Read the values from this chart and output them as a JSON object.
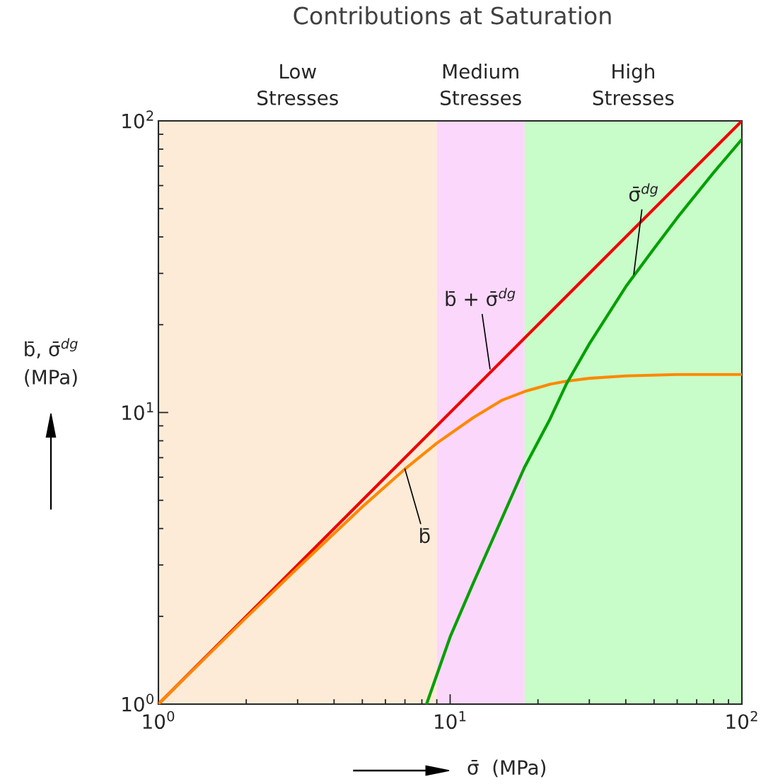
{
  "chart_data": {
    "type": "line",
    "title": "Contributions at Saturation",
    "xlabel": "σ̄  (MPa)",
    "ylabel": "b̄, σ̄$^{dg}$\n(MPa)",
    "log": "xy",
    "xlim": [
      1,
      100
    ],
    "ylim": [
      1,
      100
    ],
    "xticks": [
      {
        "value": 1,
        "label": "10$^{0}$"
      },
      {
        "value": 10,
        "label": "10$^{1}$"
      },
      {
        "value": 100,
        "label": "10$^{2}$"
      }
    ],
    "yticks": [
      {
        "value": 1,
        "label": "10$^{0}$"
      },
      {
        "value": 10,
        "label": "10$^{1}$"
      },
      {
        "value": 100,
        "label": "10$^{2}$"
      }
    ],
    "grid": false,
    "legend": false,
    "series": [
      {
        "color": "#ee0000",
        "x": [
          1,
          100
        ],
        "values": [
          1,
          100
        ]
      },
      {
        "color": "#ff8800",
        "x": [
          1,
          2,
          3,
          5,
          7,
          9,
          12,
          15,
          18,
          22,
          25,
          30,
          40,
          60,
          100
        ],
        "values": [
          1,
          1.98,
          2.93,
          4.75,
          6.4,
          7.85,
          9.6,
          11.0,
          11.8,
          12.5,
          12.8,
          13.1,
          13.35,
          13.5,
          13.5
        ]
      },
      {
        "color": "#00a000",
        "x": [
          8.3,
          10,
          12,
          15,
          18,
          22,
          25,
          30,
          40,
          50,
          60,
          80,
          100
        ],
        "values": [
          1,
          1.7,
          2.6,
          4.3,
          6.5,
          9.5,
          12.5,
          17.2,
          27,
          36.5,
          46.5,
          66.5,
          86.5
        ]
      }
    ],
    "bands": [
      {
        "axis": "x",
        "from": 1,
        "to": 9,
        "label": "Low\nStresses",
        "color": "#fdebd7"
      },
      {
        "axis": "x",
        "from": 9,
        "to": 18,
        "label": "Medium\nStresses",
        "color": "#fcd7fc"
      },
      {
        "axis": "x",
        "from": 18,
        "to": 100,
        "label": "High\nStresses",
        "color": "#c8fcc8"
      }
    ],
    "annotations": [
      {
        "text": "b̄ + σ̄$^{dg}$",
        "x": 13.7,
        "y": 14.1
      },
      {
        "text": "σ̄$^{dg}$",
        "x": 42.6,
        "y": 29.8
      },
      {
        "text": "b̄",
        "x": 7.0,
        "y": 6.4
      }
    ]
  }
}
